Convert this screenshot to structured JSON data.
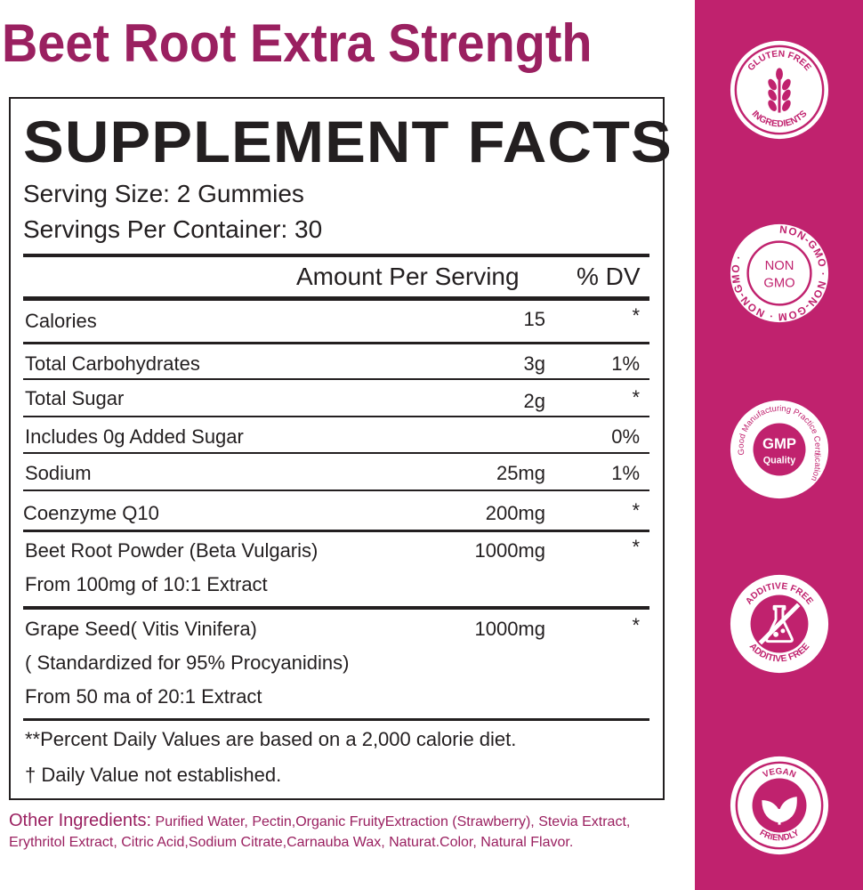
{
  "title": "Beet Root Extra Strength",
  "facts": {
    "heading": "SUPPLEMENT FACTS",
    "serving_size": "Serving Size: 2 Gummies",
    "servings_per_container": "Servings Per Container: 30",
    "amount_header": "Amount Per Serving",
    "dv_header": "% DV",
    "rows": [
      {
        "name": "Calories",
        "amount": "15",
        "dv": "*"
      },
      {
        "name": "Total Carbohydrates",
        "amount": "3g",
        "dv": "1%"
      },
      {
        "name": "Total Sugar",
        "amount": "2g",
        "dv": "*"
      },
      {
        "name": "Includes 0g Added Sugar",
        "amount": "",
        "dv": "0%"
      },
      {
        "name": "Sodium",
        "amount": "25mg",
        "dv": "1%"
      },
      {
        "name": "Coenzyme Q10",
        "amount": "200mg",
        "dv": "*"
      },
      {
        "name": "Beet Root Powder (Beta Vulgaris)",
        "sub": [
          "From 100mg of 10:1 Extract"
        ],
        "amount": "1000mg",
        "dv": "*"
      },
      {
        "name": "Grape Seed( Vitis Vinifera)",
        "sub": [
          "( Standardized for 95% Procyanidins)",
          "From 50 ma of 20:1 Extract"
        ],
        "amount": "1000mg",
        "dv": "*"
      }
    ],
    "footnote_1": "**Percent Daily Values are based on a 2,000 calorie diet.",
    "footnote_2": "† Daily Value not established."
  },
  "other_ingredients": {
    "label": "Other Ingredients:",
    "text": " Purified Water, Pectin,Organic FruityExtraction (Strawberry), Stevia Extract, Erythritol Extract, Citric Acid,Sodium Citrate,Carnauba Wax, Naturat.Color, Natural Flavor."
  },
  "badges": {
    "gluten_free": {
      "top": "GLUTEN FREE",
      "bottom": "INGREDIENTS"
    },
    "non_gmo": {
      "line1": "NON",
      "line2": "GMO",
      "ring": "NON-GMO · NON-GOM · NON-GMO ·"
    },
    "gmp": {
      "line1": "GMP",
      "line2": "Quality",
      "ring": "Good Manufacturing Practice Certification"
    },
    "additive_free": {
      "top": "ADDITIVE FREE",
      "bottom": "ADDITIVE FREE"
    },
    "vegan": {
      "top": "VEGAN",
      "bottom": "FRIENDLY"
    }
  },
  "colors": {
    "brand": "#9a2060",
    "sidebar": "#c0226e",
    "text": "#231f20"
  }
}
